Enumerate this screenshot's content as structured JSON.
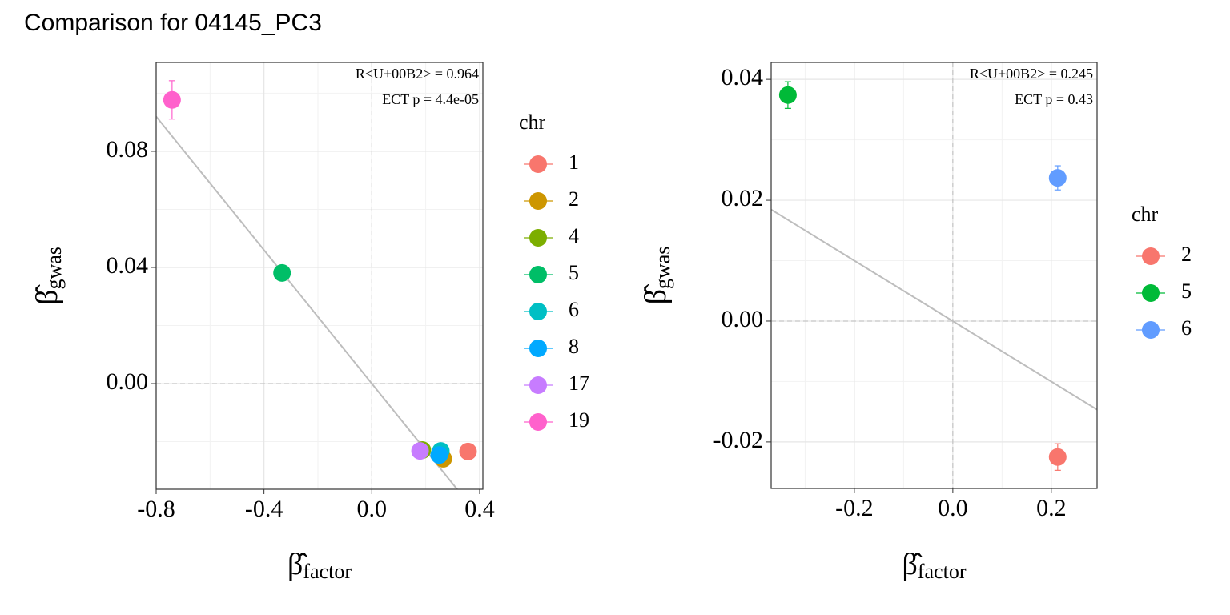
{
  "title": "Comparison for 04145_PC3",
  "chart_data": [
    {
      "type": "scatter",
      "xlabel": "β̂",
      "xlabel_subscript": "factor",
      "ylabel": "β̂",
      "ylabel_subscript": "gwas",
      "annotations": [
        "R<U+00B2> = 0.964",
        "ECT p = 4.4e-05"
      ],
      "legend_title": "chr",
      "grid": true,
      "xlim": [
        -0.8,
        0.412
      ],
      "ylim": [
        -0.0364,
        0.1106
      ],
      "xticks": [
        -0.8,
        -0.4,
        {
          "value": 0,
          "label": "0.0"
        },
        0.4
      ],
      "yticks": [
        {
          "value": 0,
          "label": "0.00"
        },
        {
          "value": 0.04,
          "label": "0.04"
        },
        {
          "value": 0.08,
          "label": "0.08"
        }
      ],
      "trend_line": {
        "slope": -0.115,
        "intercept": 0
      },
      "series": [
        {
          "name": "1",
          "color": "#F8766D",
          "x": [
            0.357
          ],
          "values": [
            -0.0234
          ],
          "errors": [
            0.002
          ]
        },
        {
          "name": "2",
          "color": "#CD9600",
          "x": [
            0.265
          ],
          "values": [
            -0.0259
          ],
          "errors": [
            0.002
          ]
        },
        {
          "name": "4",
          "color": "#7CAE00",
          "x": [
            0.1875
          ],
          "values": [
            -0.0229
          ],
          "errors": [
            0.002
          ]
        },
        {
          "name": "5",
          "color": "#00BE67",
          "x": [
            -0.333
          ],
          "values": [
            0.0381
          ],
          "errors": [
            0.002
          ]
        },
        {
          "name": "6",
          "color": "#00BFC4",
          "x": [
            0.256
          ],
          "values": [
            -0.0232
          ],
          "errors": [
            0.002
          ]
        },
        {
          "name": "8",
          "color": "#00A9FF",
          "x": [
            0.25
          ],
          "values": [
            -0.0246
          ],
          "errors": [
            0.002
          ]
        },
        {
          "name": "17",
          "color": "#C77CFF",
          "x": [
            0.179
          ],
          "values": [
            -0.0232
          ],
          "errors": [
            0.002
          ]
        },
        {
          "name": "19",
          "color": "#FF61CC",
          "x": [
            -0.741
          ],
          "values": [
            0.0977
          ],
          "errors": [
            0.0066
          ]
        }
      ]
    },
    {
      "type": "scatter",
      "xlabel": "β̂",
      "xlabel_subscript": "factor",
      "ylabel": "β̂",
      "ylabel_subscript": "gwas",
      "annotations": [
        "R<U+00B2> = 0.245",
        "ECT p = 0.43"
      ],
      "legend_title": "chr",
      "grid": true,
      "xlim": [
        -0.369,
        0.293
      ],
      "ylim": [
        -0.0277,
        0.0428
      ],
      "xticks": [
        -0.2,
        {
          "value": 0,
          "label": "0.0"
        },
        0.2
      ],
      "yticks": [
        {
          "value": -0.02,
          "label": "-0.02"
        },
        {
          "value": 0,
          "label": "0.00"
        },
        {
          "value": 0.02,
          "label": "0.02"
        },
        {
          "value": 0.04,
          "label": "0.04"
        }
      ],
      "trend_line": {
        "slope": -0.05,
        "intercept": 0
      },
      "series": [
        {
          "name": "2",
          "color": "#F8766D",
          "x": [
            0.213
          ],
          "values": [
            -0.0225
          ],
          "errors": [
            0.0022
          ]
        },
        {
          "name": "5",
          "color": "#00BA38",
          "x": [
            -0.335
          ],
          "values": [
            0.0374
          ],
          "errors": [
            0.0022
          ]
        },
        {
          "name": "6",
          "color": "#619CFF",
          "x": [
            0.213
          ],
          "values": [
            0.0237
          ],
          "errors": [
            0.002
          ]
        }
      ]
    }
  ]
}
